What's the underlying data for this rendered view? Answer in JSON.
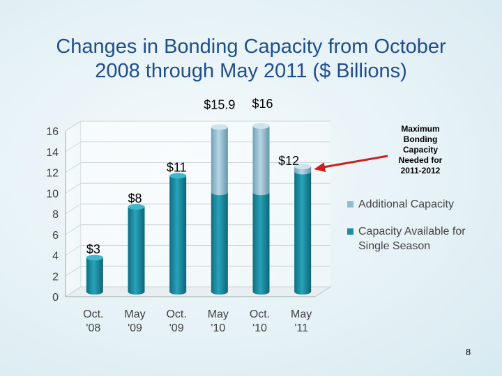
{
  "title_line1": "Changes in Bonding Capacity from October",
  "title_line2": "2008 through May 2011 ($ Billions)",
  "annotation": {
    "line1": "Maximum",
    "line2": "Bonding",
    "line3": "Capacity",
    "line4": "Needed for",
    "line5": "2011-2012",
    "arrow_color": "#cc1f1f"
  },
  "page_number": "8",
  "chart_data": {
    "type": "bar",
    "stacked": true,
    "title": "Changes in Bonding Capacity from October 2008 through May 2011 ($ Billions)",
    "categories": [
      [
        "Oct.",
        "'08"
      ],
      [
        "May",
        "'09"
      ],
      [
        "Oct.",
        "'09"
      ],
      [
        "May",
        "'10"
      ],
      [
        "Oct.",
        "'10"
      ],
      [
        "May",
        "'11"
      ]
    ],
    "series": [
      {
        "name": "Capacity Available for Single Season",
        "legend_lines": [
          "Capacity Available for",
          "Single Season"
        ],
        "values": [
          3.3,
          8.2,
          11.2,
          9.6,
          9.6,
          11.6
        ],
        "color": "#1b8ea3"
      },
      {
        "name": "Additional Capacity",
        "legend_lines": [
          "Additional Capacity"
        ],
        "values": [
          0,
          0,
          0,
          6.3,
          6.4,
          0.5
        ],
        "color": "#8fbccf"
      }
    ],
    "data_labels": [
      "$3",
      "$8",
      "$11",
      "$15.9",
      "$16",
      "$12"
    ],
    "ylim": [
      0,
      16
    ],
    "yticks": [
      0,
      2,
      4,
      6,
      8,
      10,
      12,
      14,
      16
    ],
    "grid": true,
    "legend_position": "right"
  }
}
